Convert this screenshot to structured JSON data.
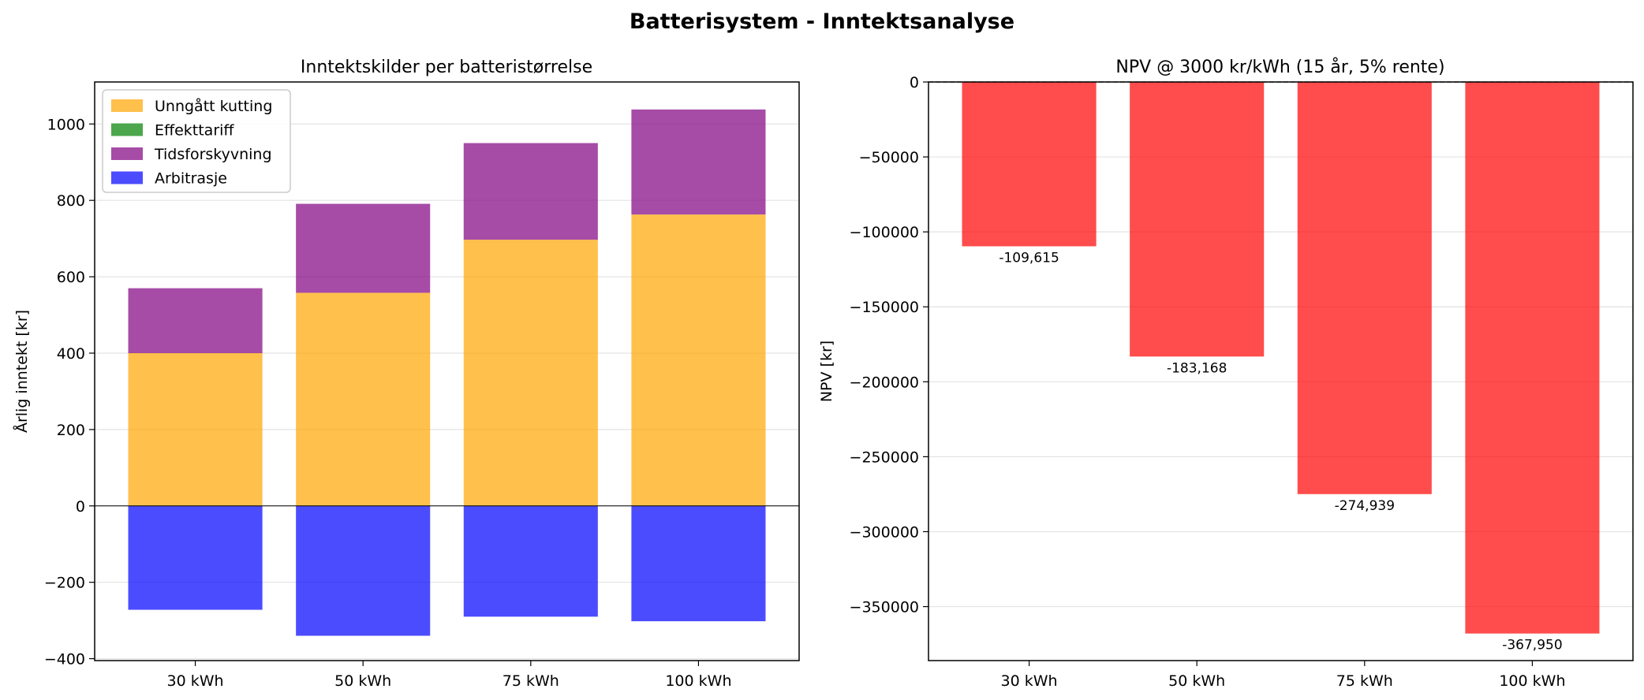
{
  "figure": {
    "title": "Batterisystem - Inntektsanalyse"
  },
  "chart_data": [
    {
      "type": "bar",
      "stacked": true,
      "title": "Inntektskilder per batteristørrelse",
      "xlabel": "",
      "ylabel": "Årlig inntekt [kr]",
      "categories": [
        "30 kWh",
        "50 kWh",
        "75 kWh",
        "100 kWh"
      ],
      "ylim": [
        -405,
        1110
      ],
      "yticks": [
        -400,
        -200,
        0,
        200,
        400,
        600,
        800,
        1000
      ],
      "grid": true,
      "legend": "top-left",
      "series": [
        {
          "name": "Unngått kutting",
          "color": "#ffa500",
          "values": [
            400,
            558,
            697,
            763
          ]
        },
        {
          "name": "Effekttariff",
          "color": "#008000",
          "values": [
            0,
            0,
            0,
            0
          ]
        },
        {
          "name": "Tidsforskyvning",
          "color": "#800080",
          "values": [
            170,
            233,
            253,
            275
          ]
        },
        {
          "name": "Arbitrasje",
          "color": "#0000ff",
          "values": [
            -272,
            -340,
            -290,
            -302
          ]
        }
      ]
    },
    {
      "type": "bar",
      "title": "NPV @ 3000 kr/kWh (15 år, 5% rente)",
      "xlabel": "",
      "ylabel": "NPV [kr]",
      "categories": [
        "30 kWh",
        "50 kWh",
        "75 kWh",
        "100 kWh"
      ],
      "values": [
        -109615,
        -183168,
        -274939,
        -367950
      ],
      "data_labels": [
        "-109,615",
        "-183,168",
        "-274,939",
        "-367,950"
      ],
      "color": "#ff0000",
      "ylim": [
        -386000,
        0
      ],
      "yticks": [
        -350000,
        -300000,
        -250000,
        -200000,
        -150000,
        -100000,
        -50000,
        0
      ],
      "grid": true
    }
  ]
}
